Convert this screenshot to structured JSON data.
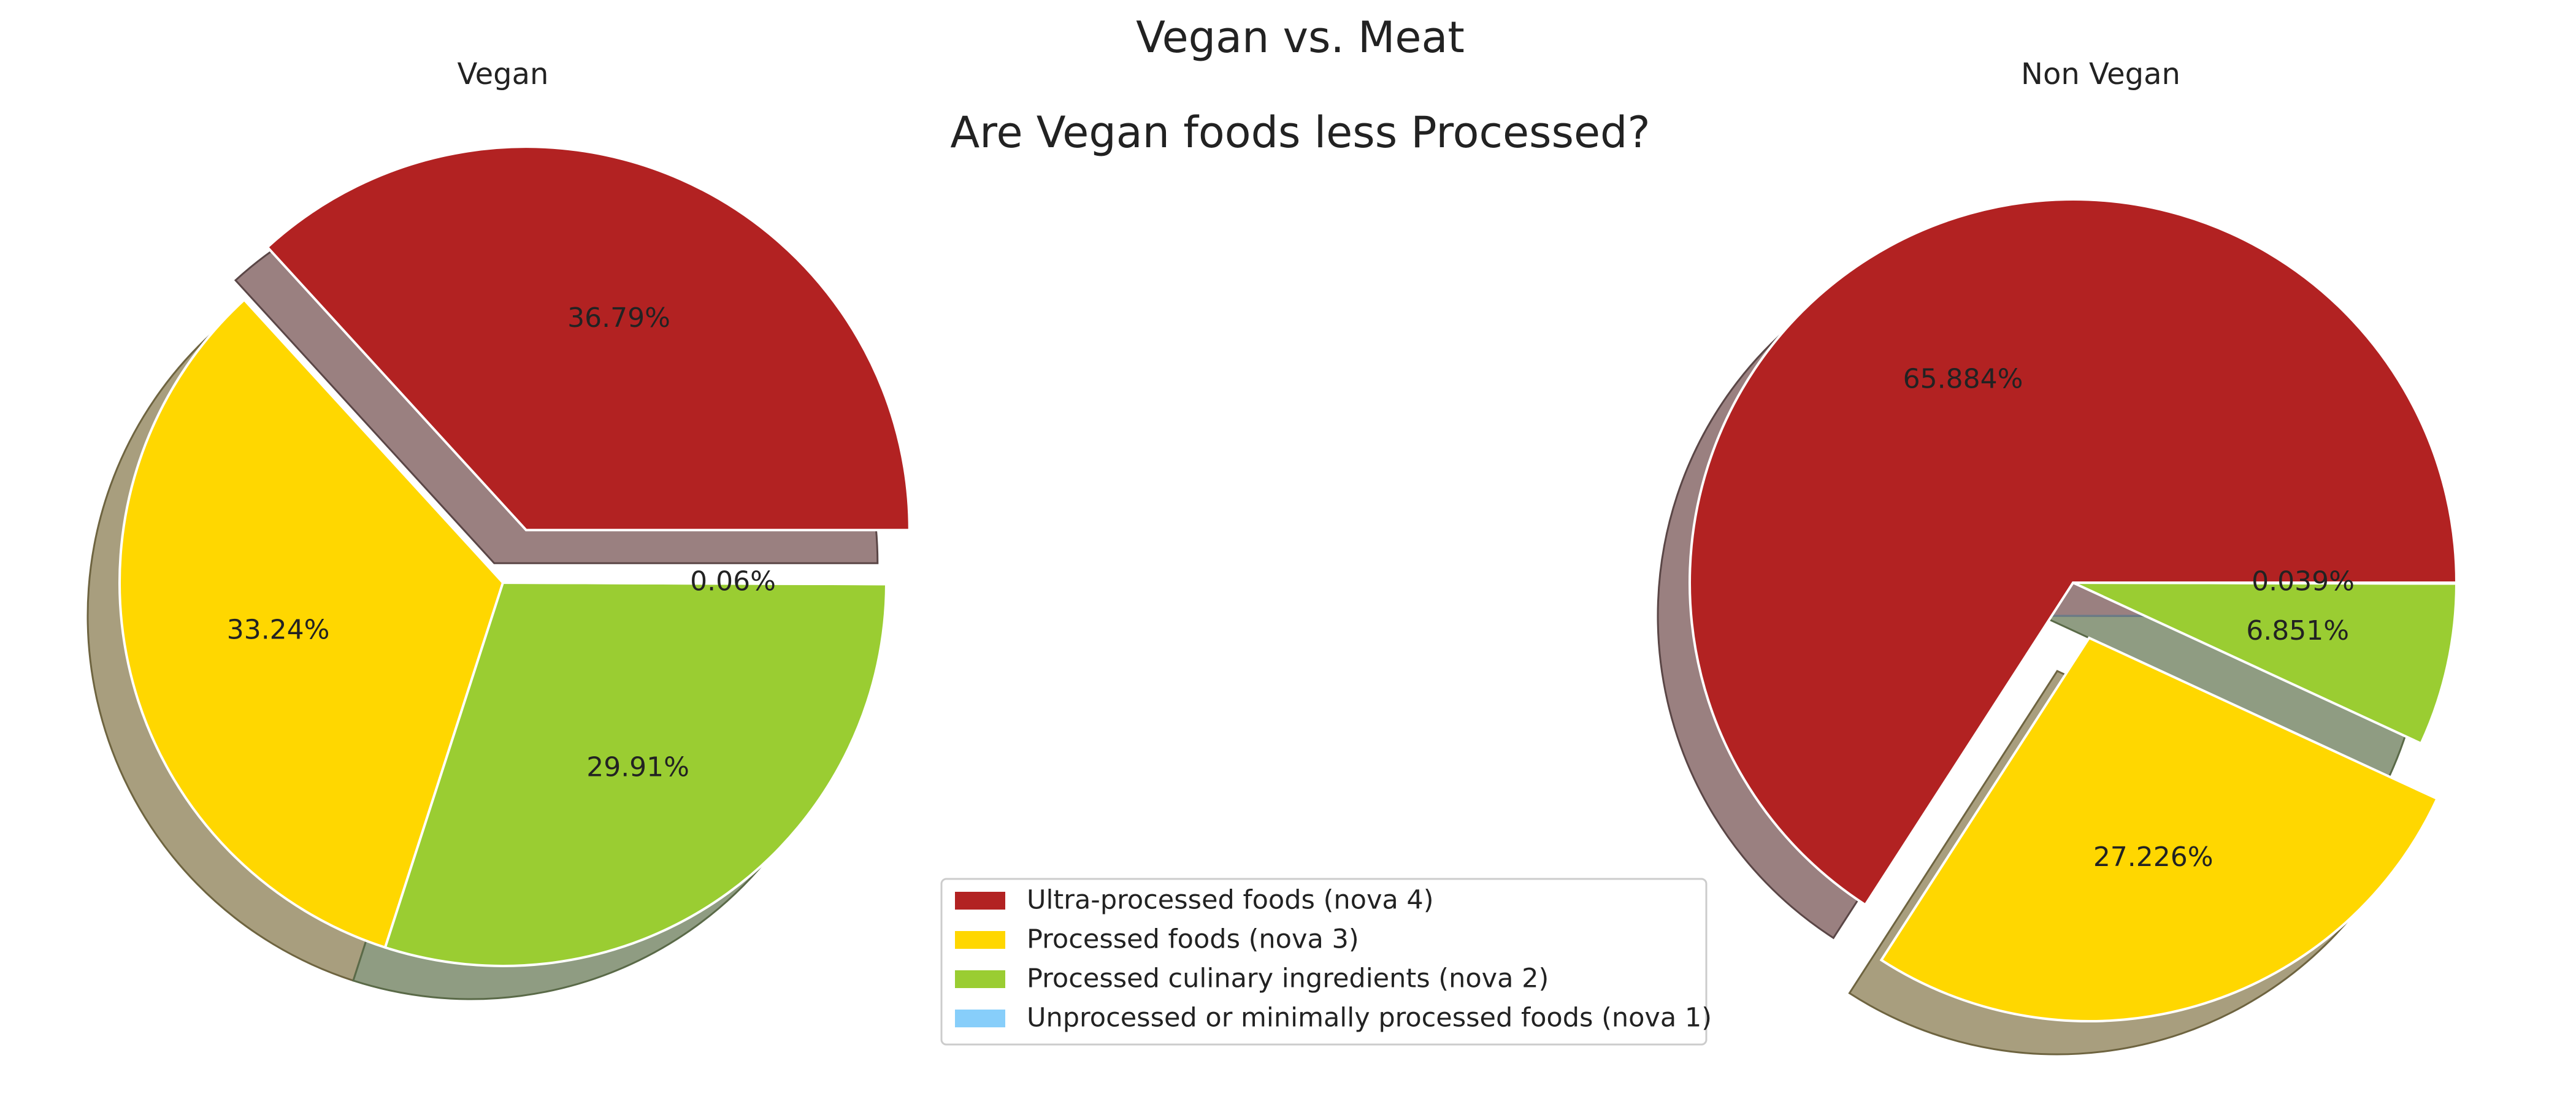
{
  "chart_data": {
    "type": "pie",
    "title": "Vegan vs. Meat",
    "subtitle": "Are Vegan foods less Processed?",
    "colors": [
      "#b22222",
      "#ffd700",
      "#9acd32",
      "#87cefa"
    ],
    "legend": {
      "placement": "bottom-center",
      "entries": [
        "Ultra-processed foods (nova 4)",
        "Processed foods (nova 3)",
        "Processed culinary ingredients (nova 2)",
        "Unprocessed or minimally processed foods (nova 1)"
      ]
    },
    "pies": [
      {
        "title": "Vegan",
        "values": [
          36.79,
          33.24,
          29.91,
          0.06
        ],
        "labels": [
          "36.79%",
          "33.24%",
          "29.91%",
          "0.06%"
        ],
        "explode": [
          0.15,
          0,
          0,
          0
        ]
      },
      {
        "title": "Non Vegan",
        "values": [
          65.884,
          27.226,
          6.851,
          0.039
        ],
        "labels": [
          "65.884%",
          "27.226%",
          "6.851%",
          "0.039%"
        ],
        "explode": [
          0,
          0.15,
          0,
          0
        ]
      }
    ]
  }
}
